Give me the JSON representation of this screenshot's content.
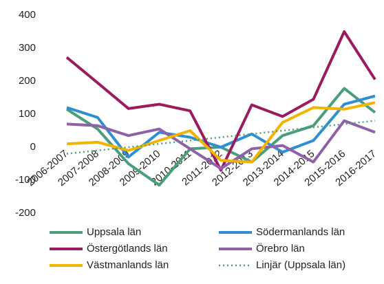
{
  "chart_data": {
    "type": "line",
    "categories": [
      "2006-2007",
      "2007-2008",
      "2008-2009",
      "2009-2010",
      "2010-2011",
      "2011-2012",
      "2012-2013",
      "2013-2014",
      "2014-2015",
      "2015-2016",
      "2016-2017"
    ],
    "series": [
      {
        "name": "Uppsala län",
        "color": "#4c9e7a",
        "values": [
          115,
          55,
          -50,
          -115,
          -5,
          0,
          -45,
          35,
          65,
          178,
          105
        ]
      },
      {
        "name": "Södermanlands län",
        "color": "#2f8fd3",
        "values": [
          120,
          90,
          -30,
          45,
          30,
          0,
          40,
          -15,
          20,
          130,
          155
        ]
      },
      {
        "name": "Östergötlands län",
        "color": "#9c1b5f",
        "values": [
          272,
          195,
          117,
          130,
          110,
          -70,
          128,
          93,
          145,
          350,
          205
        ]
      },
      {
        "name": "Örebro län",
        "color": "#8e61a9",
        "values": [
          70,
          65,
          35,
          55,
          -5,
          -65,
          -5,
          5,
          -45,
          80,
          45
        ]
      },
      {
        "name": "Västmanlands län",
        "color": "#f2b400",
        "values": [
          10,
          15,
          -10,
          20,
          50,
          -40,
          -45,
          75,
          120,
          115,
          135
        ]
      },
      {
        "name": "Linjär (Uppsala län)",
        "color": "#4c9e7a",
        "dashed": true,
        "values": [
          -20,
          -10,
          0,
          10,
          20,
          30,
          40,
          50,
          60,
          70,
          80
        ]
      }
    ],
    "ylim": [
      -200,
      400
    ],
    "yticks": [
      -200,
      -100,
      0,
      100,
      200,
      300,
      400
    ],
    "grid": false,
    "legend": "bottom"
  }
}
